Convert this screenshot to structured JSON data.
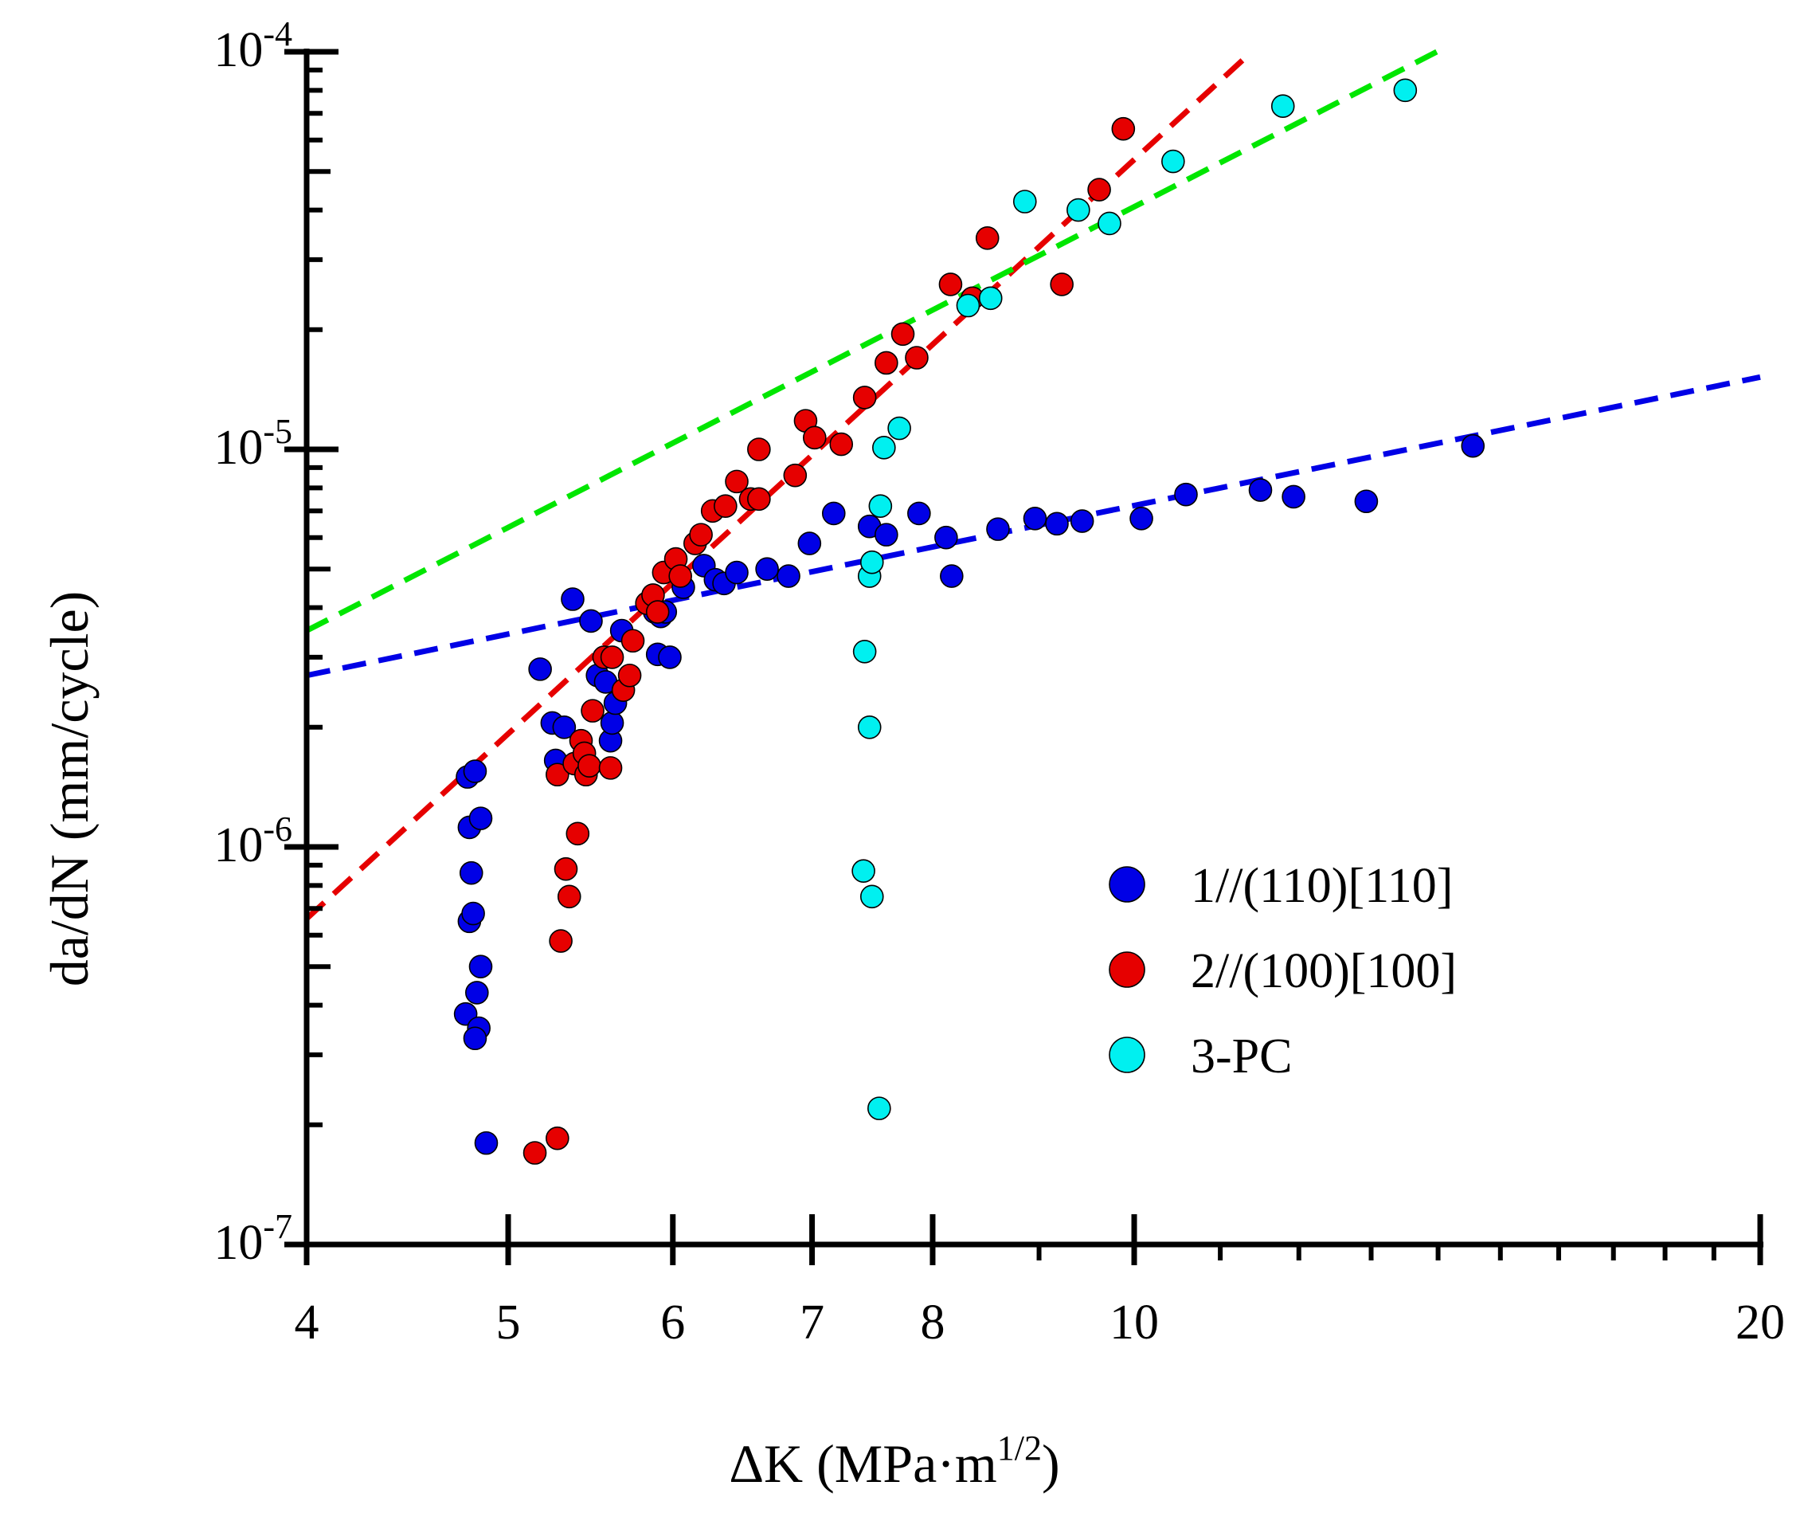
{
  "chart_data": {
    "type": "scatter",
    "x_scale": "log",
    "y_scale": "log",
    "xlim": [
      4,
      20
    ],
    "ylim": [
      1e-07,
      0.0001
    ],
    "xlabel": {
      "main": "ΔK (MPa·m",
      "sup": "1/2",
      "end": ")"
    },
    "ylabel": "da/dN (mm/cycle)",
    "x_ticks": [
      {
        "value": 4,
        "label": "4"
      },
      {
        "value": 5,
        "label": "5"
      },
      {
        "value": 6,
        "label": "6"
      },
      {
        "value": 7,
        "label": "7"
      },
      {
        "value": 8,
        "label": "8"
      },
      {
        "value": 10,
        "label": "10"
      },
      {
        "value": 20,
        "label": "20"
      }
    ],
    "y_ticks": [
      {
        "value": 1e-07,
        "base": "10",
        "exp": "-7"
      },
      {
        "value": 1e-06,
        "base": "10",
        "exp": "-6"
      },
      {
        "value": 1e-05,
        "base": "10",
        "exp": "-5"
      },
      {
        "value": 0.0001,
        "base": "10",
        "exp": "-4"
      }
    ],
    "grid": false,
    "legend_position": "bottom-right",
    "series": [
      {
        "name": "1//(110)[110]",
        "color": "#0000e6",
        "points": [
          [
            4.78,
            1.5e-06
          ],
          [
            4.82,
            1.55e-06
          ],
          [
            4.79,
            1.12e-06
          ],
          [
            4.85,
            1.18e-06
          ],
          [
            4.8,
            8.6e-07
          ],
          [
            4.79,
            6.5e-07
          ],
          [
            4.81,
            6.8e-07
          ],
          [
            4.85,
            5e-07
          ],
          [
            4.83,
            4.3e-07
          ],
          [
            4.77,
            3.8e-07
          ],
          [
            4.84,
            3.5e-07
          ],
          [
            4.82,
            3.3e-07
          ],
          [
            4.88,
            1.8e-07
          ],
          [
            5.18,
            2.8e-06
          ],
          [
            5.25,
            2.05e-06
          ],
          [
            5.32,
            2e-06
          ],
          [
            5.27,
            1.65e-06
          ],
          [
            5.37,
            4.2e-06
          ],
          [
            5.48,
            3.7e-06
          ],
          [
            5.52,
            2.7e-06
          ],
          [
            5.57,
            2.6e-06
          ],
          [
            5.6,
            1.85e-06
          ],
          [
            5.61,
            2.05e-06
          ],
          [
            5.63,
            2.3e-06
          ],
          [
            5.67,
            3.5e-06
          ],
          [
            5.88,
            3.9e-06
          ],
          [
            5.92,
            3.8e-06
          ],
          [
            5.95,
            3.9e-06
          ],
          [
            5.9,
            3.05e-06
          ],
          [
            5.98,
            3e-06
          ],
          [
            6.07,
            4.5e-06
          ],
          [
            6.21,
            5.1e-06
          ],
          [
            6.29,
            4.7e-06
          ],
          [
            6.35,
            4.6e-06
          ],
          [
            6.44,
            4.9e-06
          ],
          [
            6.66,
            5e-06
          ],
          [
            6.82,
            4.8e-06
          ],
          [
            6.98,
            5.8e-06
          ],
          [
            7.17,
            6.9e-06
          ],
          [
            7.46,
            6.4e-06
          ],
          [
            7.6,
            6.1e-06
          ],
          [
            7.88,
            6.9e-06
          ],
          [
            8.12,
            6e-06
          ],
          [
            8.17,
            4.8e-06
          ],
          [
            8.6,
            6.3e-06
          ],
          [
            8.96,
            6.7e-06
          ],
          [
            9.18,
            6.5e-06
          ],
          [
            9.44,
            6.6e-06
          ],
          [
            10.08,
            6.7e-06
          ],
          [
            10.59,
            7.7e-06
          ],
          [
            11.5,
            7.9e-06
          ],
          [
            11.93,
            7.6e-06
          ],
          [
            12.93,
            7.4e-06
          ],
          [
            14.55,
            1.02e-05
          ]
        ]
      },
      {
        "name": "2//(100)[100]",
        "color": "#e60000",
        "points": [
          [
            5.15,
            1.7e-07
          ],
          [
            5.28,
            1.85e-07
          ],
          [
            5.3,
            5.8e-07
          ],
          [
            5.35,
            7.5e-07
          ],
          [
            5.33,
            8.8e-07
          ],
          [
            5.4,
            1.08e-06
          ],
          [
            5.28,
            1.52e-06
          ],
          [
            5.38,
            1.62e-06
          ],
          [
            5.42,
            1.85e-06
          ],
          [
            5.44,
            1.72e-06
          ],
          [
            5.45,
            1.52e-06
          ],
          [
            5.47,
            1.6e-06
          ],
          [
            5.49,
            2.2e-06
          ],
          [
            5.56,
            3e-06
          ],
          [
            5.61,
            3e-06
          ],
          [
            5.6,
            1.58e-06
          ],
          [
            5.68,
            2.48e-06
          ],
          [
            5.72,
            2.7e-06
          ],
          [
            5.74,
            3.3e-06
          ],
          [
            5.83,
            4.1e-06
          ],
          [
            5.87,
            4.3e-06
          ],
          [
            5.9,
            3.9e-06
          ],
          [
            5.94,
            4.9e-06
          ],
          [
            6.02,
            5.3e-06
          ],
          [
            6.05,
            4.8e-06
          ],
          [
            6.15,
            5.8e-06
          ],
          [
            6.19,
            6.1e-06
          ],
          [
            6.27,
            7e-06
          ],
          [
            6.36,
            7.2e-06
          ],
          [
            6.44,
            8.3e-06
          ],
          [
            6.54,
            7.5e-06
          ],
          [
            6.6,
            7.5e-06
          ],
          [
            6.6,
            1e-05
          ],
          [
            6.87,
            8.6e-06
          ],
          [
            6.95,
            1.18e-05
          ],
          [
            7.02,
            1.07e-05
          ],
          [
            7.23,
            1.03e-05
          ],
          [
            7.42,
            1.35e-05
          ],
          [
            7.6,
            1.65e-05
          ],
          [
            7.74,
            1.95e-05
          ],
          [
            7.86,
            1.7e-05
          ],
          [
            8.16,
            2.6e-05
          ],
          [
            8.36,
            2.4e-05
          ],
          [
            8.5,
            3.4e-05
          ],
          [
            9.23,
            2.6e-05
          ],
          [
            9.62,
            4.5e-05
          ],
          [
            9.88,
            6.4e-05
          ]
        ]
      },
      {
        "name": "3-PC",
        "color": "#00f0f0",
        "points": [
          [
            7.54,
            2.2e-07
          ],
          [
            7.48,
            7.5e-07
          ],
          [
            7.41,
            8.7e-07
          ],
          [
            7.46,
            2e-06
          ],
          [
            7.42,
            3.1e-06
          ],
          [
            7.46,
            4.8e-06
          ],
          [
            7.48,
            5.2e-06
          ],
          [
            7.55,
            7.2e-06
          ],
          [
            7.58,
            1.01e-05
          ],
          [
            7.71,
            1.13e-05
          ],
          [
            8.32,
            2.3e-05
          ],
          [
            8.53,
            2.4e-05
          ],
          [
            8.86,
            4.2e-05
          ],
          [
            9.4,
            4e-05
          ],
          [
            9.73,
            3.7e-05
          ],
          [
            10.44,
            5.3e-05
          ],
          [
            11.79,
            7.3e-05
          ],
          [
            13.5,
            8e-05
          ]
        ]
      }
    ],
    "fit_lines": [
      {
        "color": "#0000e6",
        "from": [
          4,
          2.7e-06
        ],
        "to": [
          20,
          1.52e-05
        ]
      },
      {
        "color": "#e60000",
        "from": [
          4,
          6.6e-07
        ],
        "to": [
          11.39,
          0.0001
        ]
      },
      {
        "color": "#00e600",
        "from": [
          4,
          3.5e-06
        ],
        "to": [
          13.98,
          0.0001
        ]
      }
    ]
  }
}
